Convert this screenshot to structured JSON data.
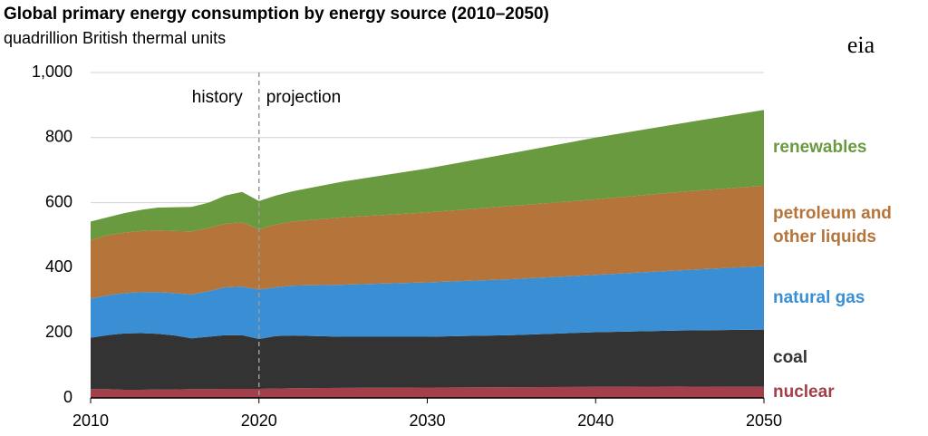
{
  "chart_data": {
    "type": "stacked-area",
    "title": "Global primary energy consumption by energy source (2010–2050)",
    "subtitle": "quadrillion British thermal units",
    "logo": "eia",
    "annotations": [
      "history",
      "projection"
    ],
    "divider": 2020,
    "x": [
      2010,
      2011,
      2012,
      2013,
      2014,
      2015,
      2016,
      2017,
      2018,
      2019,
      2020,
      2021,
      2022,
      2025,
      2030,
      2035,
      2040,
      2045,
      2050
    ],
    "series": [
      {
        "name": "nuclear",
        "color": "#a33f4a",
        "values": [
          27,
          27,
          25,
          25,
          26,
          26,
          27,
          27,
          28,
          28,
          28,
          29,
          30,
          31,
          32,
          33,
          34,
          35,
          34
        ]
      },
      {
        "name": "coal",
        "color": "#333333",
        "values": [
          158,
          166,
          173,
          174,
          171,
          166,
          156,
          161,
          165,
          165,
          153,
          161,
          162,
          157,
          156,
          160,
          168,
          172,
          176
        ]
      },
      {
        "name": "natural gas",
        "color": "#3a8fd4",
        "values": [
          120,
          122,
          124,
          126,
          128,
          130,
          135,
          140,
          147,
          149,
          152,
          150,
          153,
          160,
          167,
          172,
          176,
          185,
          195
        ]
      },
      {
        "name": "petroleum and other liquids",
        "color": "#b5743a",
        "values": [
          180,
          185,
          186,
          188,
          190,
          191,
          194,
          194,
          195,
          198,
          185,
          193,
          197,
          207,
          215,
          225,
          232,
          241,
          247
        ]
      },
      {
        "name": "renewables",
        "color": "#6a9a3f",
        "values": [
          57,
          55,
          60,
          65,
          70,
          73,
          75,
          78,
          87,
          93,
          87,
          89,
          93,
          110,
          135,
          162,
          190,
          210,
          233
        ]
      }
    ],
    "xlim": [
      2010,
      2050
    ],
    "xticks": [
      2010,
      2020,
      2030,
      2040,
      2050
    ],
    "ylim": [
      0,
      1000
    ],
    "yticks": [
      0,
      200,
      400,
      600,
      800,
      {
        "value": 1000,
        "label": "1,000"
      }
    ],
    "grid": true
  }
}
